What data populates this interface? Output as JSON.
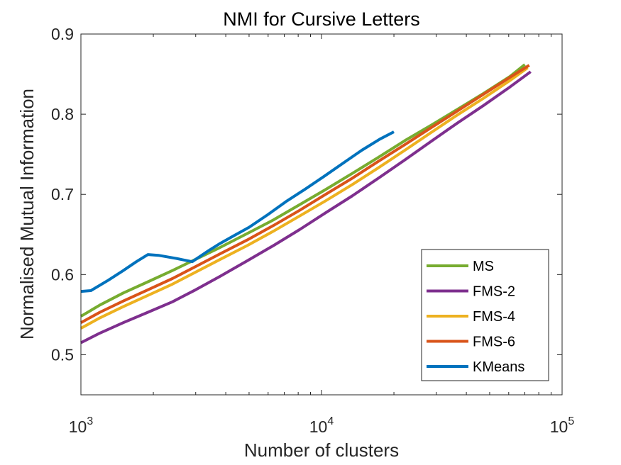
{
  "chart_data": {
    "type": "line",
    "title": "NMI for Cursive Letters",
    "xlabel": "Number of clusters",
    "ylabel": "Normalised Mutual Information",
    "xscale": "log",
    "xlim": [
      1000,
      100000
    ],
    "ylim": [
      0.45,
      0.9
    ],
    "xticks": [
      {
        "value": 1000,
        "base": "10",
        "exp": "3"
      },
      {
        "value": 10000,
        "base": "10",
        "exp": "4"
      },
      {
        "value": 100000,
        "base": "10",
        "exp": "5"
      }
    ],
    "yticks": [
      {
        "value": 0.5,
        "label": "0.5"
      },
      {
        "value": 0.6,
        "label": "0.6"
      },
      {
        "value": 0.7,
        "label": "0.7"
      },
      {
        "value": 0.8,
        "label": "0.8"
      },
      {
        "value": 0.9,
        "label": "0.9"
      }
    ],
    "grid": false,
    "legend_position": "bottom-right",
    "series": [
      {
        "name": "MS",
        "color": "#77AC30",
        "x": [
          1000,
          1200,
          1500,
          1900,
          2400,
          3000,
          3800,
          4900,
          6300,
          8100,
          10400,
          13400,
          17200,
          22200,
          28500,
          36700,
          47200,
          60700,
          70000
        ],
        "y": [
          0.548,
          0.562,
          0.577,
          0.591,
          0.605,
          0.619,
          0.634,
          0.651,
          0.668,
          0.687,
          0.706,
          0.726,
          0.746,
          0.767,
          0.786,
          0.806,
          0.826,
          0.847,
          0.862
        ]
      },
      {
        "name": "FMS-2",
        "color": "#7E2F8E",
        "x": [
          1000,
          1200,
          1500,
          1900,
          2400,
          3000,
          3800,
          4900,
          6300,
          8100,
          10400,
          13400,
          17200,
          22200,
          28500,
          36700,
          47200,
          60700,
          74000
        ],
        "y": [
          0.515,
          0.527,
          0.54,
          0.553,
          0.566,
          0.581,
          0.598,
          0.617,
          0.636,
          0.656,
          0.677,
          0.698,
          0.72,
          0.743,
          0.766,
          0.789,
          0.811,
          0.834,
          0.853
        ]
      },
      {
        "name": "FMS-4",
        "color": "#EDB120",
        "x": [
          1000,
          1200,
          1500,
          1900,
          2400,
          3000,
          3800,
          4900,
          6300,
          8100,
          10400,
          13400,
          17200,
          22200,
          28500,
          36700,
          47200,
          60700,
          72000
        ],
        "y": [
          0.533,
          0.546,
          0.56,
          0.574,
          0.588,
          0.603,
          0.619,
          0.636,
          0.654,
          0.673,
          0.692,
          0.712,
          0.733,
          0.755,
          0.777,
          0.799,
          0.82,
          0.842,
          0.858
        ]
      },
      {
        "name": "FMS-6",
        "color": "#D95319",
        "x": [
          1000,
          1200,
          1500,
          1900,
          2400,
          3000,
          3800,
          4900,
          6300,
          8100,
          10400,
          13400,
          17200,
          22200,
          28500,
          36700,
          47200,
          60700,
          73000
        ],
        "y": [
          0.54,
          0.553,
          0.567,
          0.581,
          0.595,
          0.61,
          0.626,
          0.643,
          0.661,
          0.68,
          0.7,
          0.72,
          0.741,
          0.762,
          0.783,
          0.804,
          0.825,
          0.846,
          0.861
        ]
      },
      {
        "name": "KMeans",
        "color": "#0072BD",
        "x": [
          1000,
          1100,
          1300,
          1500,
          1700,
          1900,
          2100,
          2500,
          2900,
          3400,
          3800,
          4300,
          5000,
          6000,
          7200,
          8600,
          10200,
          12300,
          14700,
          17500,
          20000
        ],
        "y": [
          0.579,
          0.58,
          0.593,
          0.605,
          0.616,
          0.625,
          0.624,
          0.62,
          0.616,
          0.63,
          0.639,
          0.648,
          0.659,
          0.675,
          0.692,
          0.707,
          0.722,
          0.739,
          0.755,
          0.769,
          0.778
        ]
      }
    ]
  }
}
